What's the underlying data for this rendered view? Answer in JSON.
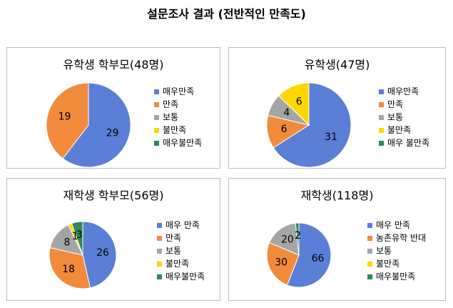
{
  "page_title": "설문조사 결과 (전반적인 만족도)",
  "chart_data": [
    {
      "type": "pie",
      "title": "유학생 학부모(48명)",
      "categories": [
        "매우만족",
        "만족",
        "보통",
        "불만족",
        "매우불만족"
      ],
      "values": [
        29,
        19,
        0,
        0,
        0
      ],
      "data_labels": [
        "29",
        "19",
        "",
        "",
        ""
      ],
      "colors": [
        "#5b7fd6",
        "#f28a3c",
        "#a5a5a5",
        "#ffd700",
        "#2e8b57"
      ],
      "legend_position": "right"
    },
    {
      "type": "pie",
      "title": "유학생(47명)",
      "categories": [
        "매우만족",
        "만족",
        "보통",
        "불만족",
        "매우 불만족"
      ],
      "values": [
        31,
        6,
        4,
        6,
        0
      ],
      "data_labels": [
        "31",
        "6",
        "4",
        "6",
        ""
      ],
      "colors": [
        "#5b7fd6",
        "#f28a3c",
        "#a5a5a5",
        "#ffd700",
        "#2e8b57"
      ],
      "legend_position": "right"
    },
    {
      "type": "pie",
      "title": "재학생 학부모(56명)",
      "categories": [
        "매우 만족",
        "만족",
        "보통",
        "불만족",
        "매우불만족"
      ],
      "values": [
        26,
        18,
        8,
        1,
        3
      ],
      "data_labels": [
        "26",
        "18",
        "8",
        "1",
        "3"
      ],
      "colors": [
        "#5b7fd6",
        "#f28a3c",
        "#a5a5a5",
        "#ffd700",
        "#2e8b57"
      ],
      "legend_position": "right"
    },
    {
      "type": "pie",
      "title": "재학생(118명)",
      "categories": [
        "매우 만족",
        "농촌유학 반대",
        "보통",
        "불만족",
        "매우불만족"
      ],
      "values": [
        66,
        30,
        20,
        0,
        2
      ],
      "data_labels": [
        "66",
        "30",
        "20",
        "",
        "2"
      ],
      "colors": [
        "#5b7fd6",
        "#f28a3c",
        "#a5a5a5",
        "#ffd700",
        "#2e8b57"
      ],
      "legend_position": "right"
    }
  ]
}
